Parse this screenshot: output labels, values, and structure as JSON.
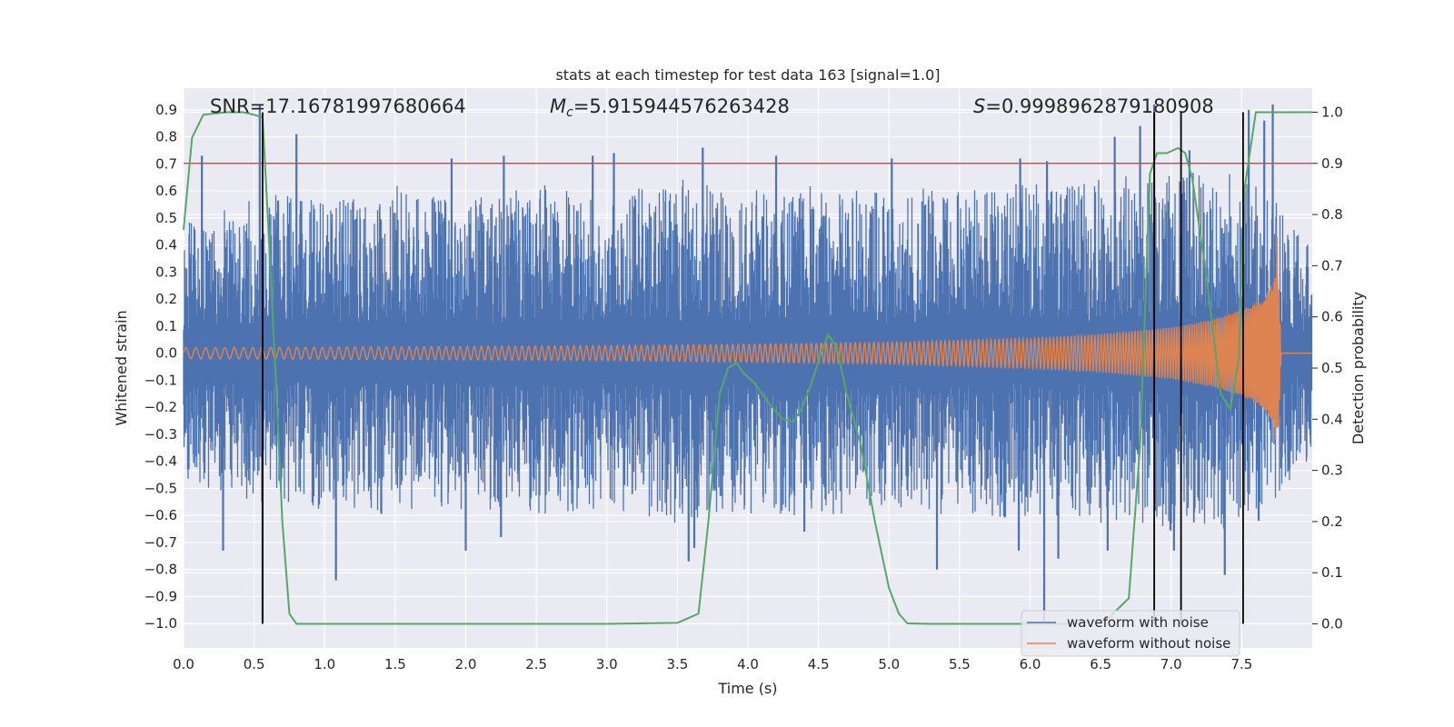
{
  "chart_data": {
    "type": "line",
    "title": "stats at each timestep for test data 163 [signal=1.0]",
    "xlabel": "Time (s)",
    "ylabel": "Whitened strain",
    "y2label": "Detection probability",
    "xlim": [
      0.0,
      8.0
    ],
    "ylim": [
      -1.09,
      0.98
    ],
    "y2lim": [
      -0.047,
      1.047
    ],
    "x_ticks": [
      "0.0",
      "0.5",
      "1.0",
      "1.5",
      "2.0",
      "2.5",
      "3.0",
      "3.5",
      "4.0",
      "4.5",
      "5.0",
      "5.5",
      "6.0",
      "6.5",
      "7.0",
      "7.5"
    ],
    "y_ticks": [
      "0.9",
      "0.8",
      "0.7",
      "0.6",
      "0.5",
      "0.4",
      "0.3",
      "0.2",
      "0.1",
      "0.0",
      "−0.1",
      "−0.2",
      "−0.3",
      "−0.4",
      "−0.5",
      "−0.6",
      "−0.7",
      "−0.8",
      "−0.9",
      "−1.0"
    ],
    "y2_ticks": [
      "1.0",
      "0.9",
      "0.8",
      "0.7",
      "0.6",
      "0.5",
      "0.4",
      "0.3",
      "0.2",
      "0.1",
      "0.0"
    ],
    "annotations": {
      "snr": "SNR=17.16781997680664",
      "mc_symbol": "M",
      "mc_sub": "c",
      "mc_value": "=5.915944576263428",
      "s_symbol": "S",
      "s_value": "=0.9998962879180908"
    },
    "threshold": {
      "axis": "y2",
      "value": 0.9,
      "color": "#c44e52"
    },
    "event_markers_x": [
      0.56,
      6.88,
      7.07,
      7.51
    ],
    "series": [
      {
        "name": "waveform with noise",
        "axis": "y",
        "color": "#4c72b0",
        "style": "noise band",
        "envelope_x": [
          0.0,
          0.5,
          1.0,
          1.5,
          2.0,
          2.5,
          3.0,
          3.5,
          4.0,
          4.5,
          5.0,
          5.5,
          6.0,
          6.5,
          7.0,
          7.5,
          7.76,
          8.0
        ],
        "envelope_upper": [
          0.48,
          0.6,
          0.56,
          0.62,
          0.56,
          0.63,
          0.58,
          0.65,
          0.6,
          0.62,
          0.6,
          0.62,
          0.63,
          0.66,
          0.68,
          0.66,
          0.55,
          0.42
        ],
        "envelope_lower": [
          -0.5,
          -0.55,
          -0.58,
          -0.6,
          -0.58,
          -0.6,
          -0.58,
          -0.63,
          -0.6,
          -0.6,
          -0.58,
          -0.6,
          -0.62,
          -0.64,
          -0.66,
          -0.65,
          -0.55,
          -0.42
        ],
        "peaks_x": [
          0.13,
          0.54,
          0.8,
          1.9,
          2.27,
          2.9,
          3.05,
          3.68,
          4.2,
          5.02,
          5.93,
          6.12,
          6.6,
          6.78,
          6.88,
          7.13,
          7.55,
          7.66,
          7.72
        ],
        "peaks_y": [
          0.73,
          0.92,
          0.81,
          0.72,
          0.73,
          0.73,
          0.74,
          0.76,
          0.73,
          0.72,
          0.72,
          0.71,
          0.8,
          0.84,
          0.92,
          0.75,
          0.9,
          0.86,
          0.92
        ],
        "troughs_x": [
          0.28,
          0.56,
          1.08,
          2.0,
          2.25,
          3.58,
          3.62,
          4.4,
          5.34,
          5.92,
          6.1,
          6.2,
          6.55,
          7.02,
          7.38,
          7.62
        ],
        "troughs_y": [
          -0.73,
          -0.99,
          -0.84,
          -0.73,
          -0.68,
          -0.77,
          -0.72,
          -0.66,
          -0.8,
          -0.73,
          -0.99,
          -0.76,
          -0.73,
          -0.73,
          -0.82,
          -0.62
        ]
      },
      {
        "name": "waveform without noise",
        "axis": "y",
        "color": "#dd8452",
        "style": "chirp",
        "amplitude_x": [
          0.0,
          1.0,
          2.0,
          3.0,
          4.0,
          5.0,
          6.0,
          6.5,
          7.0,
          7.3,
          7.5,
          7.65,
          7.72,
          7.76,
          7.78,
          8.0
        ],
        "amplitude": [
          0.02,
          0.022,
          0.025,
          0.028,
          0.033,
          0.04,
          0.055,
          0.07,
          0.095,
          0.125,
          0.16,
          0.2,
          0.26,
          0.31,
          0.0,
          0.0
        ],
        "frequency_x": [
          0.0,
          2.0,
          4.0,
          6.0,
          7.0,
          7.5,
          7.76
        ],
        "frequency_hz": [
          14,
          20,
          26,
          36,
          52,
          75,
          110
        ],
        "peak_y": 0.43,
        "trough_y": -0.32
      },
      {
        "name": "detection probability",
        "axis": "y2",
        "color": "#55a868",
        "x": [
          0.0,
          0.06,
          0.14,
          0.3,
          0.42,
          0.5,
          0.56,
          0.6,
          0.65,
          0.7,
          0.75,
          0.8,
          1.0,
          2.0,
          3.0,
          3.5,
          3.65,
          3.72,
          3.8,
          3.86,
          3.92,
          3.97,
          4.05,
          4.15,
          4.25,
          4.32,
          4.38,
          4.45,
          4.52,
          4.57,
          4.63,
          4.7,
          4.8,
          4.9,
          5.0,
          5.07,
          5.13,
          5.3,
          5.5,
          5.8,
          6.0,
          6.3,
          6.55,
          6.7,
          6.78,
          6.85,
          6.9,
          6.97,
          7.05,
          7.1,
          7.15,
          7.25,
          7.35,
          7.42,
          7.48,
          7.52,
          7.6,
          8.0
        ],
        "y": [
          0.77,
          0.95,
          0.995,
          1.0,
          1.0,
          0.995,
          0.99,
          0.78,
          0.5,
          0.2,
          0.02,
          0.0,
          0.0,
          0.0,
          0.0,
          0.002,
          0.02,
          0.2,
          0.45,
          0.5,
          0.51,
          0.49,
          0.47,
          0.43,
          0.4,
          0.395,
          0.42,
          0.47,
          0.53,
          0.565,
          0.54,
          0.45,
          0.35,
          0.2,
          0.07,
          0.02,
          0.001,
          0.0,
          0.0,
          0.0,
          0.0,
          0.0,
          0.01,
          0.05,
          0.35,
          0.88,
          0.92,
          0.92,
          0.93,
          0.92,
          0.87,
          0.68,
          0.45,
          0.42,
          0.52,
          0.85,
          1.0,
          1.0
        ]
      }
    ],
    "legend": {
      "position": "bottom-right",
      "entries": [
        "waveform with noise",
        "waveform without noise"
      ]
    }
  }
}
